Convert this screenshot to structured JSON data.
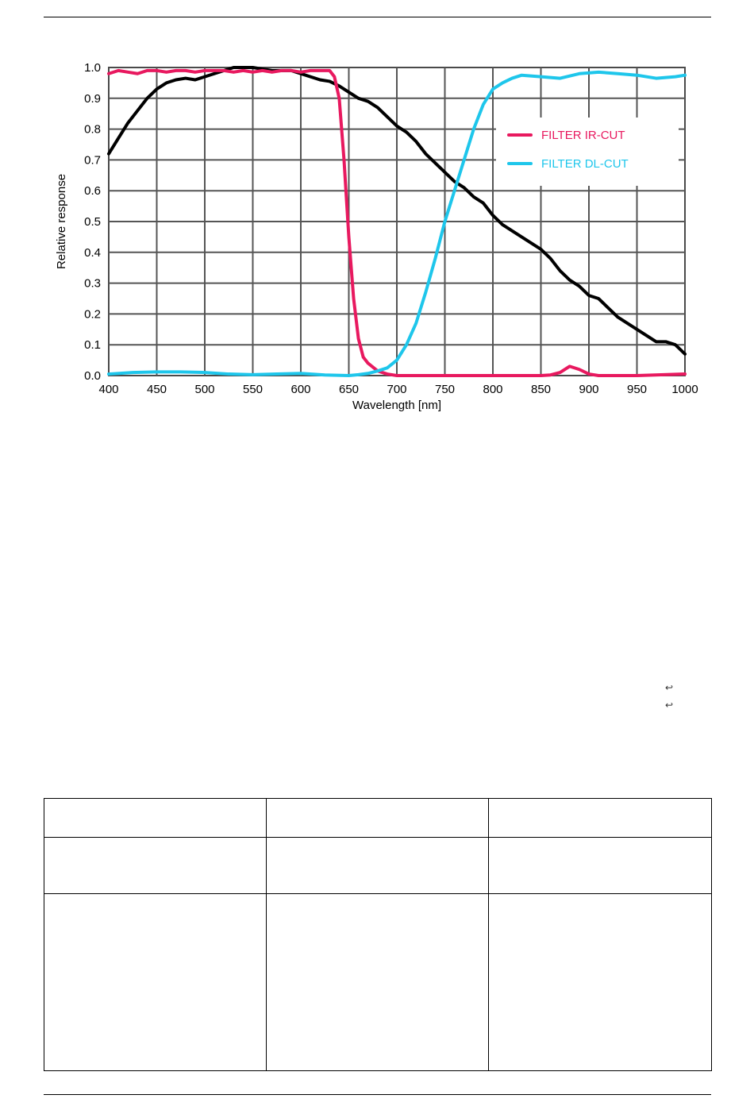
{
  "chart_data": {
    "type": "line",
    "title": "",
    "xlabel": "Wavelength [nm]",
    "ylabel": "Relative response",
    "xlim": [
      400,
      1000
    ],
    "ylim": [
      0.0,
      1.0
    ],
    "xticks": [
      400,
      450,
      500,
      550,
      600,
      650,
      700,
      750,
      800,
      850,
      900,
      950,
      1000
    ],
    "yticks": [
      0.0,
      0.1,
      0.2,
      0.3,
      0.4,
      0.5,
      0.6,
      0.7,
      0.8,
      0.9,
      1.0
    ],
    "xtick_labels": [
      "400",
      "450",
      "500",
      "550",
      "600",
      "650",
      "700",
      "750",
      "800",
      "850",
      "900",
      "950",
      "1000"
    ],
    "ytick_labels": [
      "0.0",
      "0.1",
      "0.2",
      "0.3",
      "0.4",
      "0.5",
      "0.6",
      "0.7",
      "0.8",
      "0.9",
      "1.0"
    ],
    "grid": true,
    "legend_position": "upper-right",
    "series": [
      {
        "name": "",
        "color": "#000000",
        "x": [
          400,
          410,
          420,
          430,
          440,
          450,
          460,
          470,
          480,
          490,
          500,
          510,
          520,
          530,
          540,
          550,
          560,
          570,
          580,
          590,
          600,
          610,
          620,
          630,
          640,
          650,
          660,
          670,
          680,
          690,
          700,
          710,
          720,
          730,
          740,
          750,
          760,
          770,
          780,
          790,
          800,
          810,
          820,
          830,
          840,
          850,
          860,
          870,
          880,
          890,
          900,
          910,
          920,
          930,
          940,
          950,
          960,
          970,
          980,
          990,
          1000
        ],
        "y": [
          0.72,
          0.77,
          0.82,
          0.86,
          0.9,
          0.93,
          0.95,
          0.96,
          0.965,
          0.96,
          0.97,
          0.98,
          0.99,
          1.0,
          1.0,
          1.0,
          0.995,
          0.99,
          0.99,
          0.99,
          0.98,
          0.97,
          0.96,
          0.955,
          0.94,
          0.92,
          0.9,
          0.89,
          0.87,
          0.84,
          0.81,
          0.79,
          0.76,
          0.72,
          0.69,
          0.66,
          0.63,
          0.61,
          0.58,
          0.56,
          0.52,
          0.49,
          0.47,
          0.45,
          0.43,
          0.41,
          0.38,
          0.34,
          0.31,
          0.29,
          0.26,
          0.25,
          0.22,
          0.19,
          0.17,
          0.15,
          0.13,
          0.11,
          0.11,
          0.1,
          0.07
        ]
      },
      {
        "name": "FILTER IR-CUT",
        "color": "#e8195f",
        "x": [
          400,
          410,
          420,
          430,
          440,
          450,
          460,
          470,
          480,
          490,
          500,
          510,
          520,
          530,
          540,
          550,
          560,
          570,
          580,
          590,
          600,
          610,
          620,
          630,
          635,
          640,
          645,
          650,
          655,
          660,
          665,
          670,
          680,
          690,
          700,
          750,
          800,
          850,
          860,
          870,
          880,
          890,
          900,
          910,
          920,
          950,
          1000
        ],
        "y": [
          0.98,
          0.99,
          0.985,
          0.98,
          0.99,
          0.99,
          0.985,
          0.99,
          0.99,
          0.985,
          0.99,
          0.99,
          0.99,
          0.985,
          0.99,
          0.985,
          0.99,
          0.985,
          0.99,
          0.99,
          0.985,
          0.99,
          0.99,
          0.99,
          0.97,
          0.9,
          0.7,
          0.45,
          0.25,
          0.12,
          0.06,
          0.04,
          0.015,
          0.005,
          0.0,
          0.0,
          0.0,
          0.0,
          0.002,
          0.01,
          0.03,
          0.02,
          0.005,
          0.0,
          0.0,
          0.0,
          0.005
        ]
      },
      {
        "name": "FILTER DL-CUT",
        "color": "#1ec6eb",
        "x": [
          400,
          425,
          450,
          475,
          500,
          525,
          550,
          575,
          600,
          625,
          650,
          660,
          670,
          680,
          690,
          700,
          710,
          720,
          730,
          740,
          750,
          760,
          770,
          780,
          790,
          800,
          810,
          820,
          830,
          850,
          870,
          890,
          910,
          930,
          950,
          970,
          990,
          1000
        ],
        "y": [
          0.005,
          0.01,
          0.012,
          0.012,
          0.01,
          0.005,
          0.003,
          0.005,
          0.007,
          0.002,
          0.0,
          0.003,
          0.007,
          0.015,
          0.025,
          0.05,
          0.1,
          0.17,
          0.27,
          0.38,
          0.5,
          0.6,
          0.7,
          0.8,
          0.88,
          0.93,
          0.95,
          0.965,
          0.975,
          0.97,
          0.965,
          0.98,
          0.985,
          0.98,
          0.975,
          0.965,
          0.97,
          0.975
        ]
      }
    ]
  },
  "table": {
    "rows": [
      [
        "",
        "",
        ""
      ],
      [
        "",
        "",
        ""
      ],
      [
        "",
        "",
        ""
      ]
    ]
  },
  "arrows": {
    "a1": "↩",
    "a2": "↩"
  }
}
